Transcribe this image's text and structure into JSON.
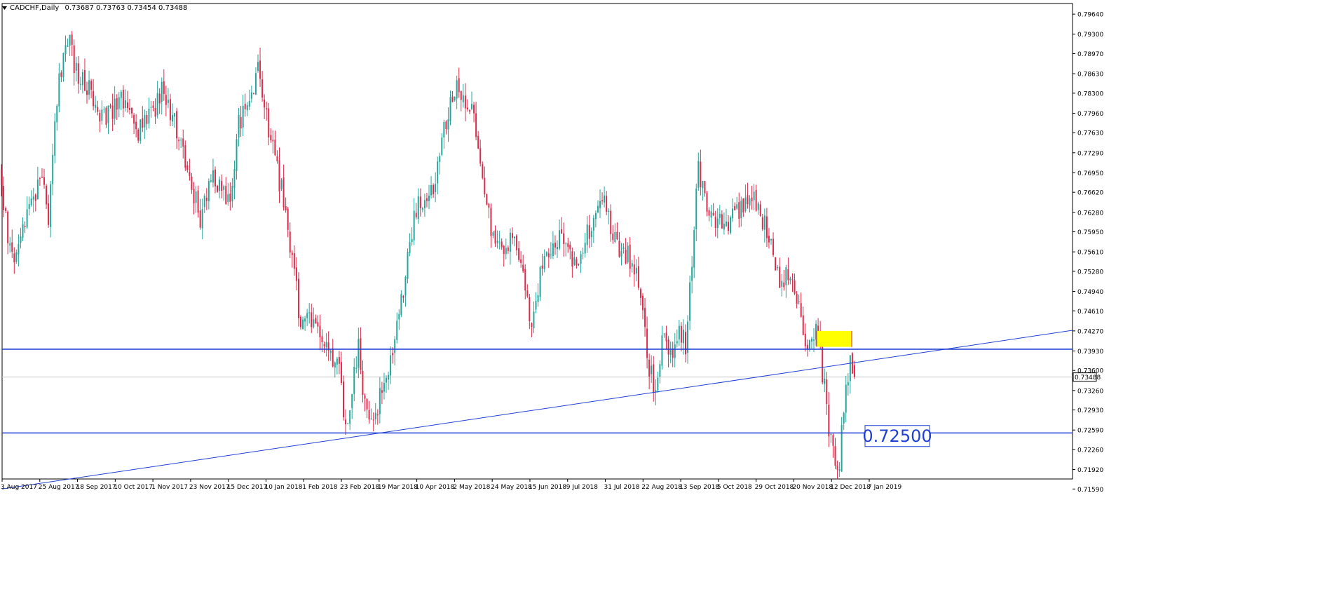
{
  "header": {
    "symbol_caption": "CADCHF,Daily",
    "ohlc_caption": "0.73687 0.73763 0.73454 0.73488"
  },
  "price_marker": {
    "label": "0.73488",
    "value": 0.73488
  },
  "annotation": {
    "label": "0.72500",
    "value": 0.725
  },
  "colors": {
    "bull": "#26a69a",
    "bear": "#e0294a",
    "line": "#1f3fd6",
    "zone": "#ffff00",
    "text": "#000000",
    "grid": "#000000"
  },
  "chart_data": {
    "type": "candlestick",
    "ylim": [
      0.7176,
      0.7982
    ],
    "y_ticks": [
      "0.79640",
      "0.79300",
      "0.78970",
      "0.78630",
      "0.78300",
      "0.77960",
      "0.77630",
      "0.77290",
      "0.76950",
      "0.76620",
      "0.76280",
      "0.75950",
      "0.75610",
      "0.75280",
      "0.74940",
      "0.74610",
      "0.74270",
      "0.73930",
      "0.73600",
      "0.73260",
      "0.72930",
      "0.72590",
      "0.72260",
      "0.71920",
      "0.71590"
    ],
    "x_ticks": [
      "3 Aug 2017",
      "25 Aug 2017",
      "18 Sep 2017",
      "10 Oct 2017",
      "1 Nov 2017",
      "23 Nov 2017",
      "15 Dec 2017",
      "10 Jan 2018",
      "1 Feb 2018",
      "23 Feb 2018",
      "19 Mar 2018",
      "10 Apr 2018",
      "2 May 2018",
      "24 May 2018",
      "15 Jun 2018",
      "9 Jul 2018",
      "31 Jul 2018",
      "22 Aug 2018",
      "13 Sep 2018",
      "5 Oct 2018",
      "29 Oct 2018",
      "20 Nov 2018",
      "12 Dec 2018",
      "7 Jan 2019"
    ],
    "path_keypoints": [
      [
        0,
        0.77
      ],
      [
        10,
        0.758
      ],
      [
        22,
        0.754
      ],
      [
        40,
        0.765
      ],
      [
        58,
        0.768
      ],
      [
        68,
        0.762
      ],
      [
        80,
        0.782
      ],
      [
        95,
        0.793
      ],
      [
        108,
        0.786
      ],
      [
        125,
        0.784
      ],
      [
        145,
        0.779
      ],
      [
        165,
        0.781
      ],
      [
        180,
        0.782
      ],
      [
        195,
        0.776
      ],
      [
        215,
        0.779
      ],
      [
        232,
        0.784
      ],
      [
        250,
        0.777
      ],
      [
        268,
        0.769
      ],
      [
        285,
        0.762
      ],
      [
        300,
        0.769
      ],
      [
        315,
        0.766
      ],
      [
        325,
        0.764
      ],
      [
        340,
        0.778
      ],
      [
        355,
        0.782
      ],
      [
        368,
        0.788
      ],
      [
        378,
        0.779
      ],
      [
        390,
        0.772
      ],
      [
        402,
        0.766
      ],
      [
        415,
        0.756
      ],
      [
        428,
        0.744
      ],
      [
        440,
        0.744
      ],
      [
        455,
        0.742
      ],
      [
        470,
        0.738
      ],
      [
        485,
        0.735
      ],
      [
        493,
        0.725
      ],
      [
        502,
        0.733
      ],
      [
        510,
        0.74
      ],
      [
        520,
        0.729
      ],
      [
        530,
        0.726
      ],
      [
        545,
        0.734
      ],
      [
        560,
        0.739
      ],
      [
        575,
        0.75
      ],
      [
        590,
        0.762
      ],
      [
        605,
        0.766
      ],
      [
        620,
        0.768
      ],
      [
        635,
        0.778
      ],
      [
        650,
        0.784
      ],
      [
        662,
        0.782
      ],
      [
        675,
        0.779
      ],
      [
        688,
        0.769
      ],
      [
        700,
        0.759
      ],
      [
        715,
        0.757
      ],
      [
        730,
        0.759
      ],
      [
        745,
        0.752
      ],
      [
        757,
        0.742
      ],
      [
        770,
        0.753
      ],
      [
        785,
        0.757
      ],
      [
        800,
        0.76
      ],
      [
        815,
        0.754
      ],
      [
        830,
        0.757
      ],
      [
        845,
        0.761
      ],
      [
        860,
        0.765
      ],
      [
        875,
        0.758
      ],
      [
        890,
        0.756
      ],
      [
        905,
        0.754
      ],
      [
        915,
        0.747
      ],
      [
        925,
        0.736
      ],
      [
        935,
        0.733
      ],
      [
        945,
        0.742
      ],
      [
        955,
        0.738
      ],
      [
        965,
        0.743
      ],
      [
        978,
        0.74
      ],
      [
        988,
        0.758
      ],
      [
        995,
        0.77
      ],
      [
        1005,
        0.765
      ],
      [
        1015,
        0.762
      ],
      [
        1030,
        0.76
      ],
      [
        1045,
        0.762
      ],
      [
        1060,
        0.764
      ],
      [
        1075,
        0.765
      ],
      [
        1090,
        0.761
      ],
      [
        1100,
        0.758
      ],
      [
        1110,
        0.751
      ],
      [
        1120,
        0.752
      ],
      [
        1130,
        0.75
      ],
      [
        1140,
        0.745
      ],
      [
        1148,
        0.739
      ],
      [
        1158,
        0.743
      ],
      [
        1165,
        0.742
      ],
      [
        1175,
        0.733
      ],
      [
        1182,
        0.726
      ],
      [
        1190,
        0.722
      ],
      [
        1196,
        0.72
      ],
      [
        1203,
        0.73
      ],
      [
        1210,
        0.737
      ],
      [
        1215,
        0.737
      ],
      [
        1219,
        0.73488
      ]
    ],
    "trendline": {
      "from": [
        "3 Aug 2017",
        0.7159
      ],
      "to": [
        "past 7 Jan 2019",
        0.7428
      ]
    },
    "horizontal_lines": [
      0.7396,
      0.7254
    ],
    "resistance_zone": {
      "top": 0.7427,
      "bottom": 0.74
    }
  }
}
